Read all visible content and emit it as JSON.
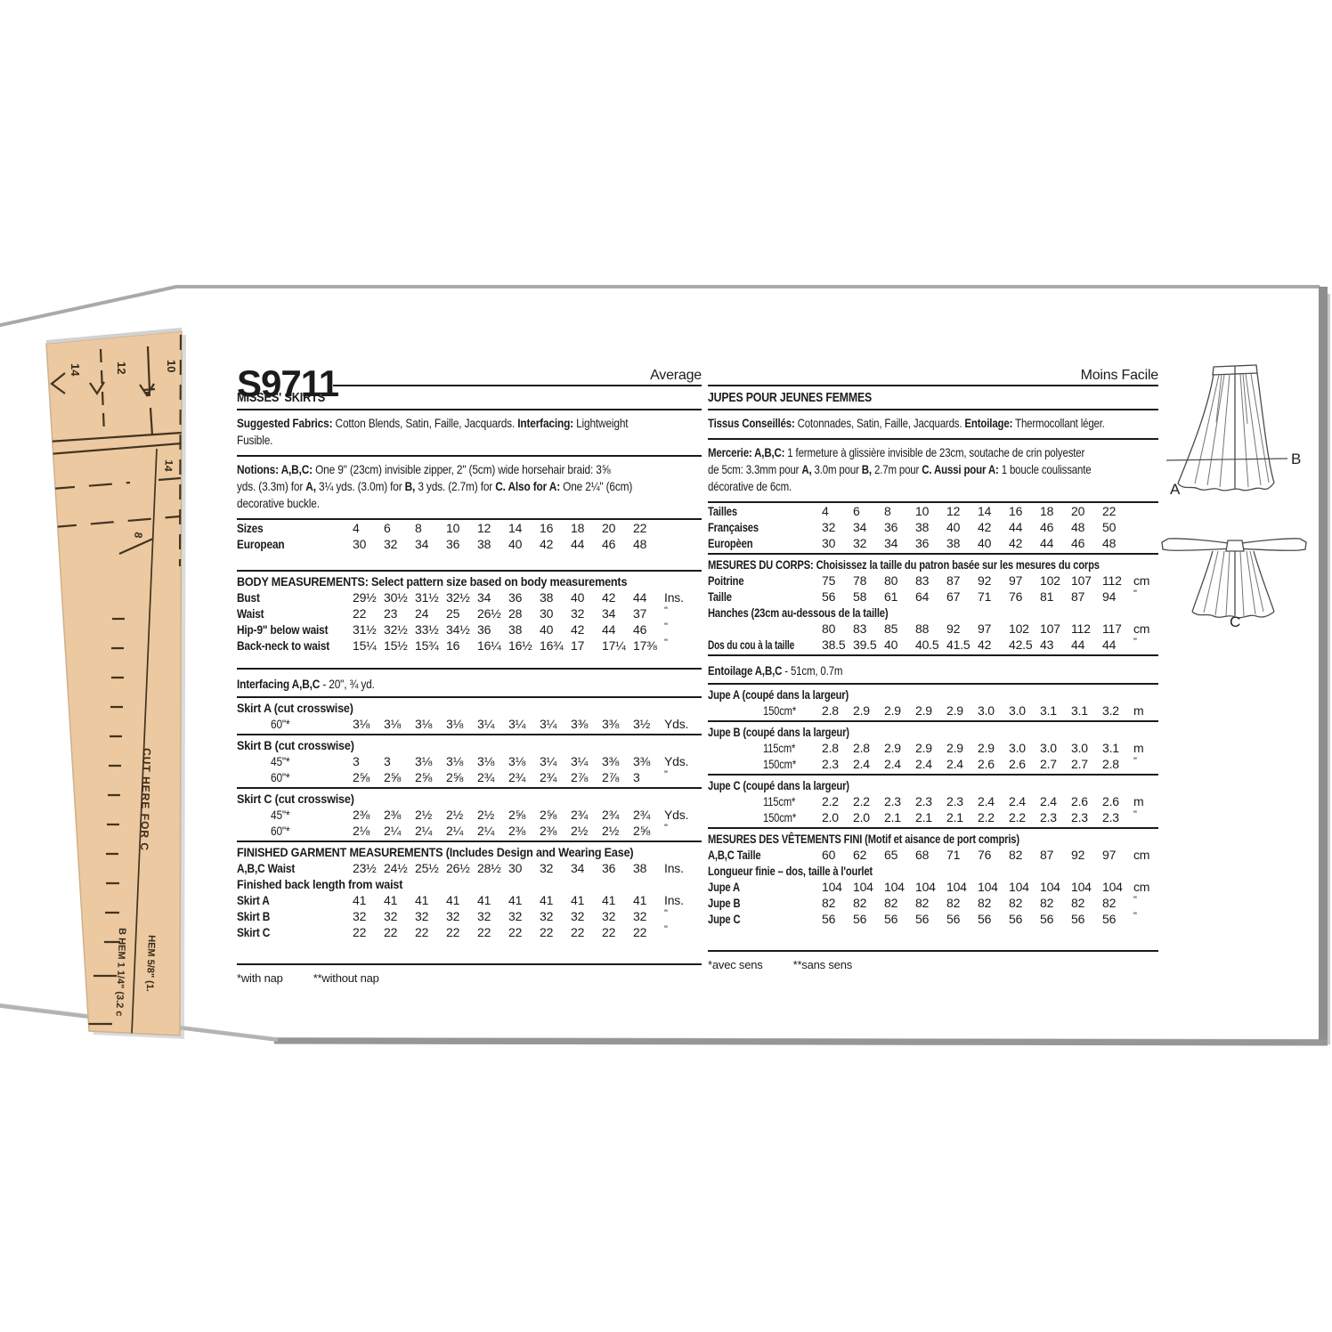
{
  "colors": {
    "tissue": "#ecc9a1",
    "ink": "#1b1b1b",
    "envelope_edge": "#8e8e8e"
  },
  "figures": {
    "a": "A",
    "b": "B",
    "c": "C"
  },
  "tissue": {
    "marks": [
      "14",
      "12",
      "10",
      "14",
      "8"
    ],
    "cut_text": "CUT HERE FOR C",
    "hem_b": "B HEM 1 1/4\" (3.2 c",
    "hem": "HEM 5/8\" (1."
  },
  "left": {
    "code": "S9711",
    "difficulty": "Average",
    "title": "MISSES' SKIRTS",
    "fabrics": [
      [
        {
          "t": "Suggested Fabrics:",
          "b": 1
        },
        {
          "t": " Cotton Blends, Satin, Faille, Jacquards. ",
          "b": 0
        },
        {
          "t": "Interfacing:",
          "b": 1
        },
        {
          "t": " Lightweight",
          "b": 0
        }
      ],
      [
        {
          "t": "Fusible.",
          "b": 0
        }
      ]
    ],
    "notions": [
      [
        {
          "t": "Notions: A,B,C:",
          "b": 1
        },
        {
          "t": " One 9\" (23cm) invisible zipper, 2\" (5cm) wide horsehair braid: 3⅝",
          "b": 0
        }
      ],
      [
        {
          "t": "yds. (3.3m) for ",
          "b": 0
        },
        {
          "t": "A,",
          "b": 1
        },
        {
          "t": " 3¼ yds. (3.0m) for ",
          "b": 0
        },
        {
          "t": "B,",
          "b": 1
        },
        {
          "t": " 3 yds. (2.7m) for ",
          "b": 0
        },
        {
          "t": "C. Also for A:",
          "b": 1
        },
        {
          "t": " One 2¼\" (6cm)",
          "b": 0
        }
      ],
      [
        {
          "t": "decorative buckle.",
          "b": 0
        }
      ]
    ],
    "size_rows": [
      {
        "label": "Sizes",
        "values": [
          "4",
          "6",
          "8",
          "10",
          "12",
          "14",
          "16",
          "18",
          "20",
          "22"
        ],
        "unit": ""
      },
      {
        "label": "European",
        "values": [
          "30",
          "32",
          "34",
          "36",
          "38",
          "40",
          "42",
          "44",
          "46",
          "48"
        ],
        "unit": ""
      }
    ],
    "body_header": "BODY MEASUREMENTS: Select pattern size based on body measurements",
    "body_rows": [
      {
        "label": "Bust",
        "values": [
          "29½",
          "30½",
          "31½",
          "32½",
          "34",
          "36",
          "38",
          "40",
          "42",
          "44"
        ],
        "unit": "Ins."
      },
      {
        "label": "Waist",
        "values": [
          "22",
          "23",
          "24",
          "25",
          "26½",
          "28",
          "30",
          "32",
          "34",
          "37"
        ],
        "unit": "\""
      },
      {
        "label": "Hip-9\" below waist",
        "values": [
          "31½",
          "32½",
          "33½",
          "34½",
          "36",
          "38",
          "40",
          "42",
          "44",
          "46"
        ],
        "unit": "\""
      },
      {
        "label": "Back-neck to waist",
        "values": [
          "15¼",
          "15½",
          "15¾",
          "16",
          "16¼",
          "16½",
          "16¾",
          "17",
          "17¼",
          "17⅜"
        ],
        "unit": "\""
      }
    ],
    "interfacing": [
      [
        {
          "t": "Interfacing A,B,C",
          "b": 1
        },
        {
          "t": " - 20\", ¾ yd.",
          "b": 0
        }
      ]
    ],
    "yardage": [
      {
        "h": "Skirt A (cut crosswise)"
      },
      {
        "sub": "60\"*",
        "values": [
          "3⅛",
          "3⅛",
          "3⅛",
          "3⅛",
          "3¼",
          "3¼",
          "3¼",
          "3⅜",
          "3⅜",
          "3½"
        ],
        "unit": "Yds."
      },
      {
        "rule": 1
      },
      {
        "h": "Skirt B (cut crosswise)"
      },
      {
        "sub": "45\"*",
        "values": [
          "3",
          "3",
          "3⅛",
          "3⅛",
          "3⅛",
          "3⅛",
          "3¼",
          "3¼",
          "3⅜",
          "3⅜"
        ],
        "unit": "Yds."
      },
      {
        "sub": "60\"*",
        "values": [
          "2⅝",
          "2⅝",
          "2⅝",
          "2⅝",
          "2¾",
          "2¾",
          "2¾",
          "2⅞",
          "2⅞",
          "3"
        ],
        "unit": "\""
      },
      {
        "rule": 1
      },
      {
        "h": "Skirt C (cut crosswise)"
      },
      {
        "sub": "45\"*",
        "values": [
          "2⅜",
          "2⅜",
          "2½",
          "2½",
          "2½",
          "2⅝",
          "2⅝",
          "2¾",
          "2¾",
          "2¾"
        ],
        "unit": "Yds."
      },
      {
        "sub": "60\"*",
        "values": [
          "2⅛",
          "2¼",
          "2¼",
          "2¼",
          "2¼",
          "2⅜",
          "2⅜",
          "2½",
          "2½",
          "2⅝"
        ],
        "unit": "\""
      }
    ],
    "finished_header": "FINISHED GARMENT MEASUREMENTS (Includes Design and Wearing Ease)",
    "finished_rows": [
      {
        "label": "A,B,C Waist",
        "values": [
          "23½",
          "24½",
          "25½",
          "26½",
          "28½",
          "30",
          "32",
          "34",
          "36",
          "38"
        ],
        "unit": "Ins."
      },
      {
        "full": "Finished back length from waist"
      },
      {
        "label": "Skirt A",
        "values": [
          "41",
          "41",
          "41",
          "41",
          "41",
          "41",
          "41",
          "41",
          "41",
          "41"
        ],
        "unit": "Ins."
      },
      {
        "label": "Skirt B",
        "values": [
          "32",
          "32",
          "32",
          "32",
          "32",
          "32",
          "32",
          "32",
          "32",
          "32"
        ],
        "unit": "\""
      },
      {
        "label": "Skirt C",
        "values": [
          "22",
          "22",
          "22",
          "22",
          "22",
          "22",
          "22",
          "22",
          "22",
          "22"
        ],
        "unit": "\""
      }
    ],
    "fn1": "*with nap",
    "fn2": "**without nap"
  },
  "right": {
    "difficulty": "Moins Facile",
    "title": "JUPES POUR JEUNES FEMMES",
    "tissus": [
      [
        {
          "t": "Tissus Conseillés:",
          "b": 1
        },
        {
          "t": " Cotonnades, Satin, Faille, Jacquards. ",
          "b": 0
        },
        {
          "t": "Entoilage:",
          "b": 1
        },
        {
          "t": " Thermocollant léger.",
          "b": 0
        }
      ]
    ],
    "mercerie": [
      [
        {
          "t": "Mercerie: A,B,C:",
          "b": 1
        },
        {
          "t": " 1 fermeture à glissière invisible de 23cm, soutache de crin polyester",
          "b": 0
        }
      ],
      [
        {
          "t": "de 5cm: 3.3mm pour ",
          "b": 0
        },
        {
          "t": "A,",
          "b": 1
        },
        {
          "t": " 3.0m pour ",
          "b": 0
        },
        {
          "t": "B,",
          "b": 1
        },
        {
          "t": " 2.7m pour ",
          "b": 0
        },
        {
          "t": "C. Aussi pour A:",
          "b": 1
        },
        {
          "t": " 1 boucle coulissante",
          "b": 0
        }
      ],
      [
        {
          "t": "décorative de 6cm.",
          "b": 0
        }
      ]
    ],
    "size_rows": [
      {
        "label": "Tailles",
        "values": [
          "4",
          "6",
          "8",
          "10",
          "12",
          "14",
          "16",
          "18",
          "20",
          "22"
        ],
        "unit": ""
      },
      {
        "label": "Françaises",
        "values": [
          "32",
          "34",
          "36",
          "38",
          "40",
          "42",
          "44",
          "46",
          "48",
          "50"
        ],
        "unit": ""
      },
      {
        "label": "Europèen",
        "values": [
          "30",
          "32",
          "34",
          "36",
          "38",
          "40",
          "42",
          "44",
          "46",
          "48"
        ],
        "unit": ""
      }
    ],
    "mesures_header": "MESURES DU CORPS: Choisissez la taille du patron basée sur les mesures du corps",
    "mesures_rows": [
      {
        "label": "Poitrine",
        "values": [
          "75",
          "78",
          "80",
          "83",
          "87",
          "92",
          "97",
          "102",
          "107",
          "112"
        ],
        "unit": "cm"
      },
      {
        "label": "Taille",
        "values": [
          "56",
          "58",
          "61",
          "64",
          "67",
          "71",
          "76",
          "81",
          "87",
          "94"
        ],
        "unit": "\""
      },
      {
        "full": "Hanches (23cm au-dessous de la taille)"
      },
      {
        "label": "",
        "values": [
          "80",
          "83",
          "85",
          "88",
          "92",
          "97",
          "102",
          "107",
          "112",
          "117"
        ],
        "unit": "cm"
      },
      {
        "label": "Dos du cou à la taille",
        "lsx": 0.72,
        "values": [
          "38.5",
          "39.5",
          "40",
          "40.5",
          "41.5",
          "42",
          "42.5",
          "43",
          "44",
          "44"
        ],
        "unit": "\""
      }
    ],
    "entoilage": [
      [
        {
          "t": "Entoilage A,B,C",
          "b": 1
        },
        {
          "t": " - 51cm, 0.7m",
          "b": 0
        }
      ]
    ],
    "metrage": [
      {
        "h": "Jupe A (coupé dans la largeur)"
      },
      {
        "sub": "150cm*",
        "values": [
          "2.8",
          "2.9",
          "2.9",
          "2.9",
          "2.9",
          "3.0",
          "3.0",
          "3.1",
          "3.1",
          "3.2"
        ],
        "unit": "m"
      },
      {
        "rule": 1
      },
      {
        "h": "Jupe B (coupé dans la largeur)"
      },
      {
        "sub": "115cm*",
        "values": [
          "2.8",
          "2.8",
          "2.9",
          "2.9",
          "2.9",
          "2.9",
          "3.0",
          "3.0",
          "3.0",
          "3.1"
        ],
        "unit": "m"
      },
      {
        "sub": "150cm*",
        "values": [
          "2.3",
          "2.4",
          "2.4",
          "2.4",
          "2.4",
          "2.6",
          "2.6",
          "2.7",
          "2.7",
          "2.8"
        ],
        "unit": "\""
      },
      {
        "rule": 1
      },
      {
        "h": "Jupe C (coupé dans la largeur)"
      },
      {
        "sub": "115cm*",
        "values": [
          "2.2",
          "2.2",
          "2.3",
          "2.3",
          "2.3",
          "2.4",
          "2.4",
          "2.4",
          "2.6",
          "2.6"
        ],
        "unit": "m"
      },
      {
        "sub": "150cm*",
        "values": [
          "2.0",
          "2.0",
          "2.1",
          "2.1",
          "2.1",
          "2.2",
          "2.2",
          "2.3",
          "2.3",
          "2.3"
        ],
        "unit": "\""
      }
    ],
    "fini_header": "MESURES DES VÊTEMENTS FINI (Motif et aisance de port compris)",
    "fini_rows": [
      {
        "label": "A,B,C Taille",
        "values": [
          "60",
          "62",
          "65",
          "68",
          "71",
          "76",
          "82",
          "87",
          "92",
          "97"
        ],
        "unit": "cm"
      },
      {
        "full": "Longueur finie – dos, taille à l'ourlet"
      },
      {
        "label": "Jupe A",
        "values": [
          "104",
          "104",
          "104",
          "104",
          "104",
          "104",
          "104",
          "104",
          "104",
          "104"
        ],
        "unit": "cm"
      },
      {
        "label": "Jupe B",
        "values": [
          "82",
          "82",
          "82",
          "82",
          "82",
          "82",
          "82",
          "82",
          "82",
          "82"
        ],
        "unit": "\""
      },
      {
        "label": "Jupe C",
        "values": [
          "56",
          "56",
          "56",
          "56",
          "56",
          "56",
          "56",
          "56",
          "56",
          "56"
        ],
        "unit": "\""
      }
    ],
    "fn1": "*avec sens",
    "fn2": "**sans sens"
  }
}
